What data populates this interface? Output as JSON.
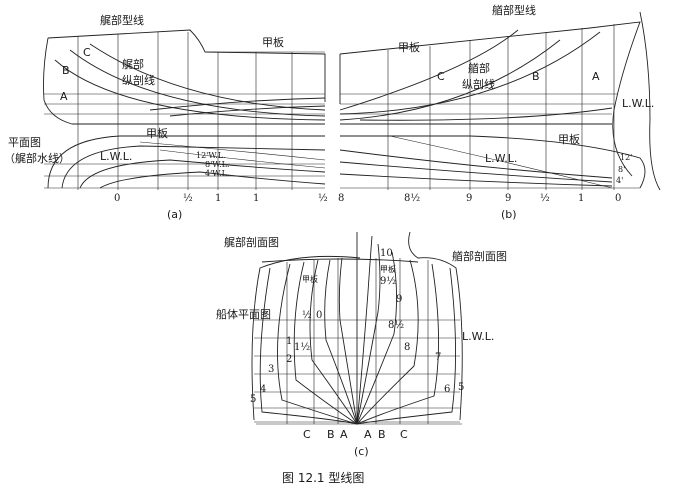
{
  "panel_a": {
    "stern_profile": "艉部型线",
    "deck": "甲板",
    "buttock_title": "艉部\n纵剖线",
    "plan_title_1": "平面图",
    "plan_title_2": "（艉部水线）",
    "deck_plan": "甲板",
    "lwl": "L.W.L.",
    "wl_12": "12'W.L.",
    "wl_8": "8'W.L.",
    "wl_4": "4'W.L.",
    "A": "A",
    "B": "B",
    "C": "C",
    "ticks": [
      "0",
      "½",
      "1",
      "1",
      "½"
    ],
    "caption": "(a)"
  },
  "panel_b": {
    "bow_profile": "艏部型线",
    "deck": "甲板",
    "buttock_title": "艏部\n纵剖线",
    "deck_plan": "甲板",
    "lwl": "L.W.L.",
    "lwl_plan": "L.W.L.",
    "A": "A",
    "B": "B",
    "C": "C",
    "wl_12": "12'",
    "wl_8": "8'",
    "wl_4": "4'",
    "ticks": [
      "8",
      "8½",
      "9",
      "9",
      "½",
      "1",
      "0"
    ],
    "caption": "(b)"
  },
  "panel_c": {
    "stern_sections": "艉部剖面图",
    "bow_sections": "艏部剖面图",
    "hull_plan": "船体平面图",
    "deck_left": "甲板",
    "deck_right": "甲板",
    "lwl": "L.W.L.",
    "stations_left": [
      "½",
      "0",
      "1½",
      "1",
      "2",
      "3",
      "4",
      "5"
    ],
    "stations_right": [
      "10",
      "9½",
      "9",
      "8½",
      "8",
      "7",
      "6",
      "5"
    ],
    "bottom_labels": [
      "C",
      "B",
      "A",
      "A",
      "B",
      "C"
    ],
    "caption": "(c)"
  },
  "figure_caption": "图 12.1    型线图"
}
